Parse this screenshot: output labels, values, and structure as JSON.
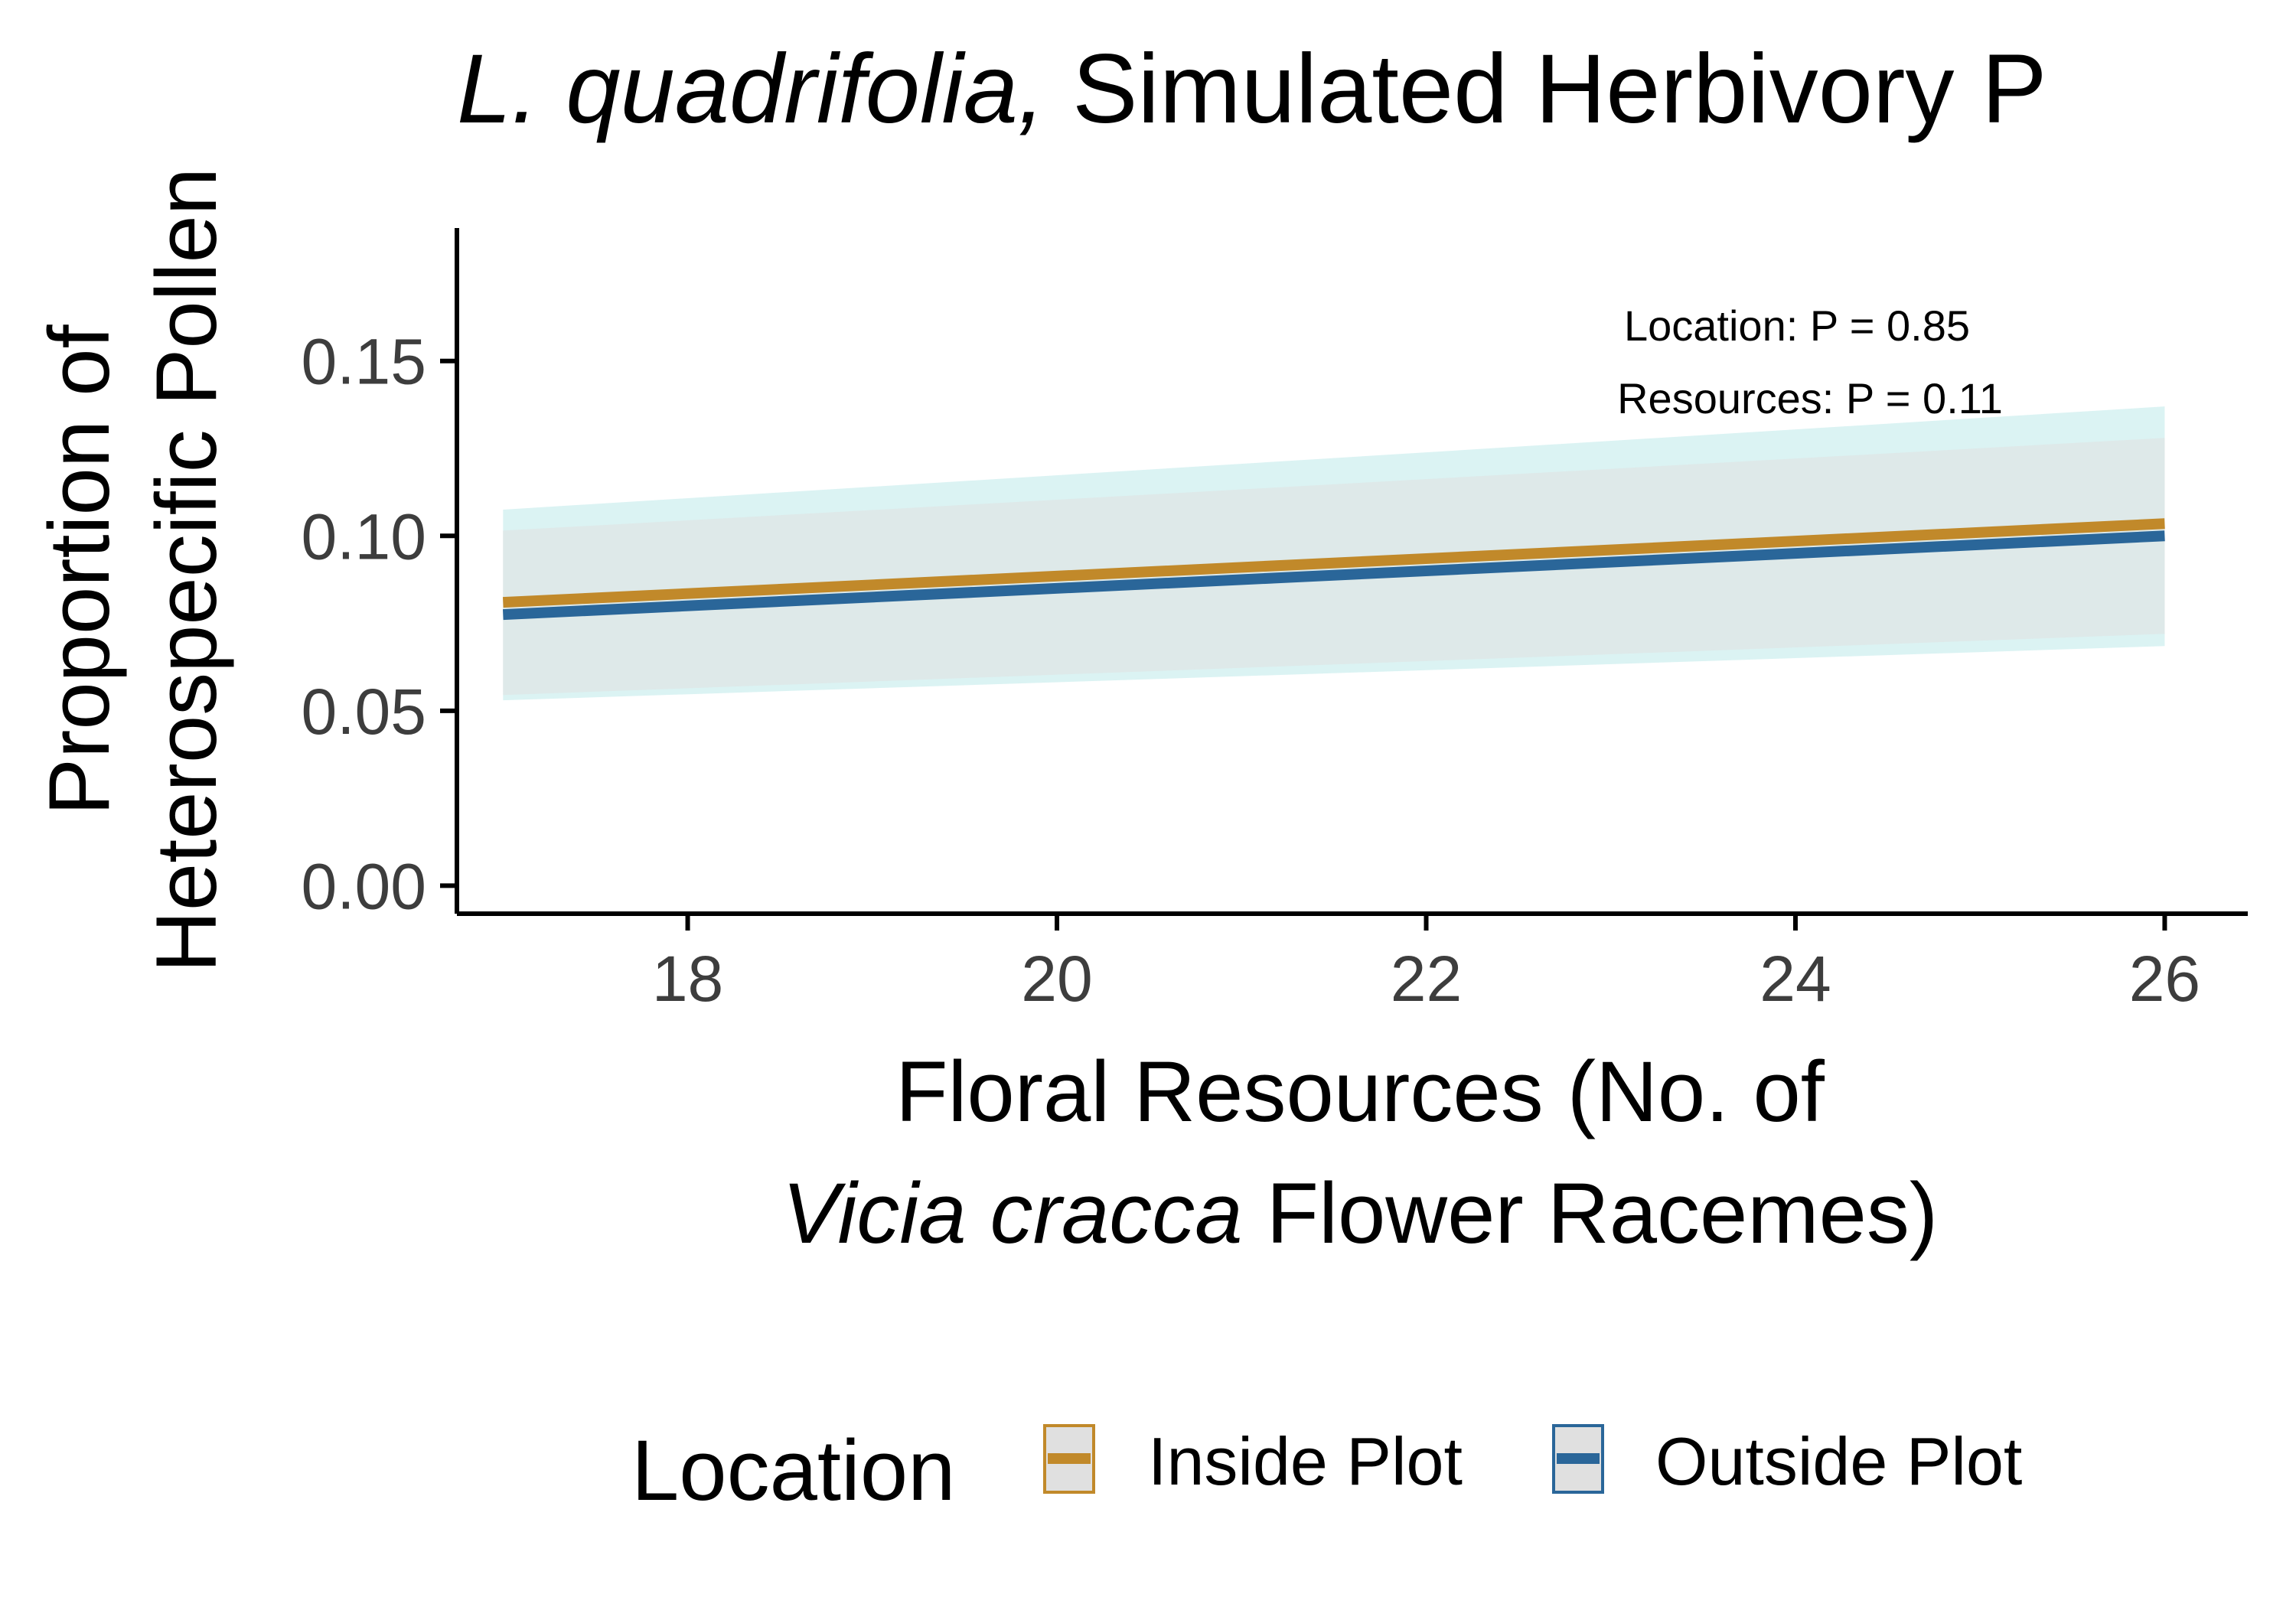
{
  "chart_data": {
    "type": "line",
    "title": {
      "italic": "L. quadrifolia,",
      "rest": " Simulated Herbivory P"
    },
    "xlabel": {
      "line1": "Floral Resources (No. of",
      "line2_italic": "Vicia cracca",
      "line2_rest": " Flower Racemes)"
    },
    "ylabel": {
      "line1": "Proportion of",
      "line2": "Heterospecific Pollen"
    },
    "xlim": [
      16.75,
      26.45
    ],
    "ylim": [
      -0.008,
      0.188
    ],
    "x_ticks": [
      18,
      20,
      22,
      24,
      26
    ],
    "x_tick_labels": [
      "18",
      "20",
      "22",
      "24",
      "26"
    ],
    "y_ticks": [
      0.0,
      0.05,
      0.1,
      0.15
    ],
    "y_tick_labels": [
      "0.00",
      "0.05",
      "0.10",
      "0.15"
    ],
    "grid": false,
    "legend": {
      "title": "Location",
      "placement": "bottom"
    },
    "annotations": [
      "Location: P = 0.85",
      "Resources: P = 0.11"
    ],
    "series": [
      {
        "name": "Inside Plot",
        "color": "#c1892a",
        "ribbon_color": "#e0e0e0",
        "x": [
          17,
          26
        ],
        "y": [
          0.081,
          0.1035
        ],
        "lower": [
          0.0545,
          0.072
        ],
        "upper": [
          0.1015,
          0.128
        ]
      },
      {
        "name": "Outside Plot",
        "color": "#2a6699",
        "ribbon_color": "#bdeaea",
        "x": [
          17,
          26
        ],
        "y": [
          0.0775,
          0.1
        ],
        "lower": [
          0.053,
          0.0685
        ],
        "upper": [
          0.1075,
          0.137
        ]
      }
    ]
  }
}
